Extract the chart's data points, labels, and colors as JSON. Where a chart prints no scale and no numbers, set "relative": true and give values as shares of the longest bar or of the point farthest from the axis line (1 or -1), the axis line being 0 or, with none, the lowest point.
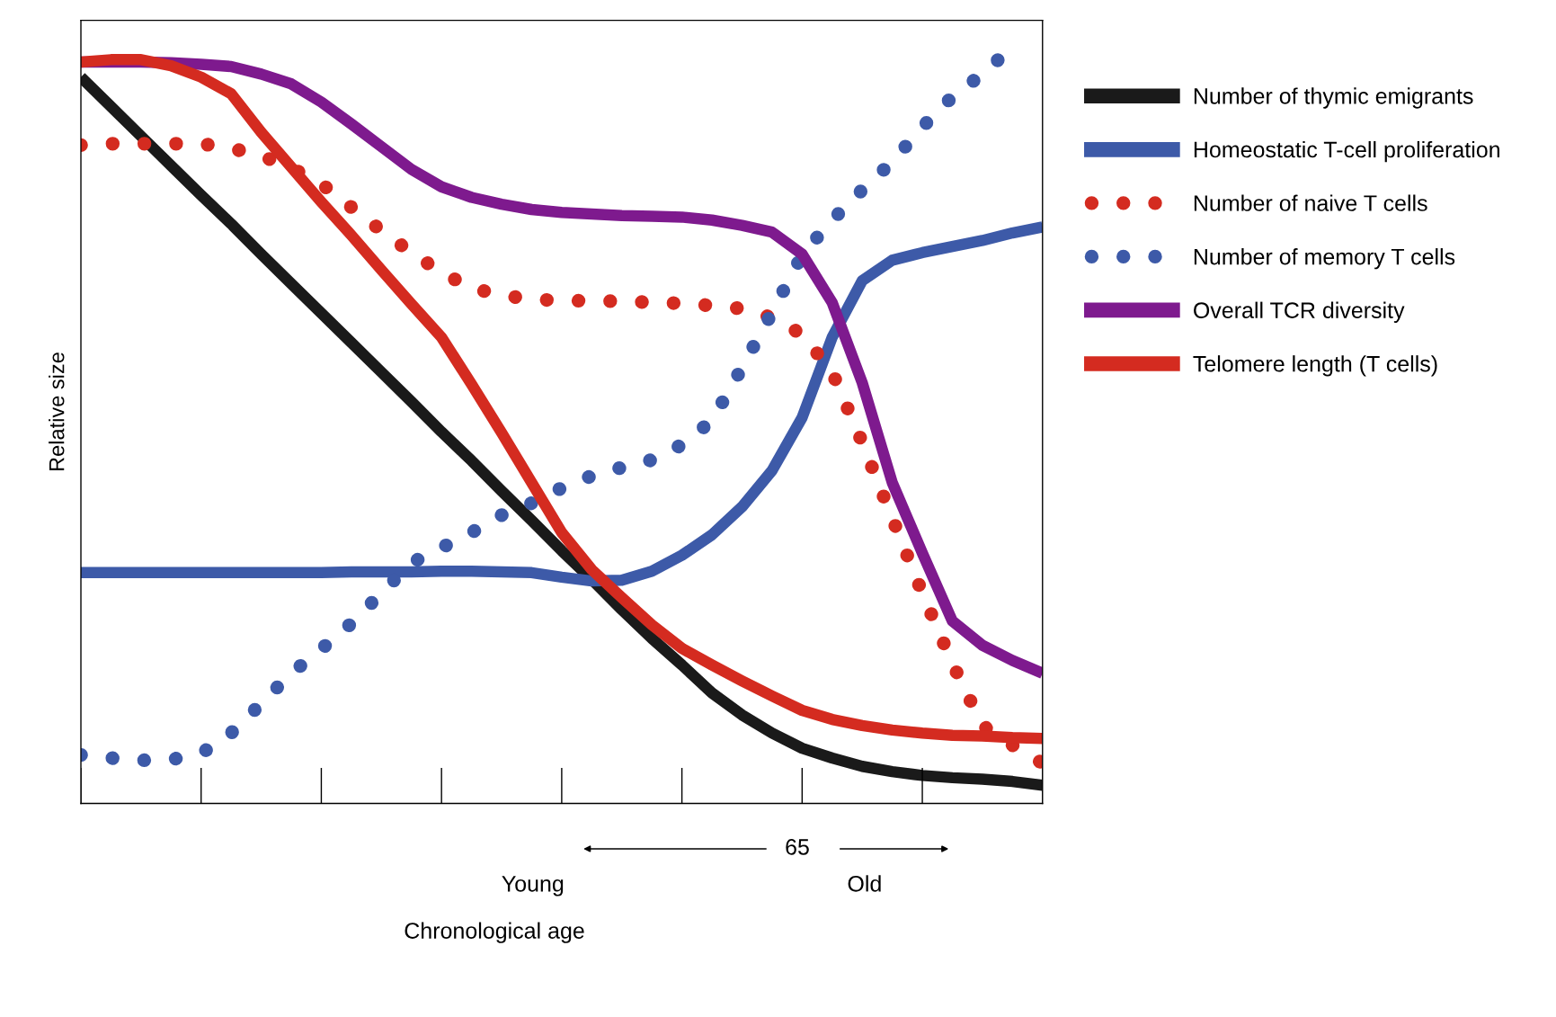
{
  "chart_data": {
    "type": "line",
    "relative": true,
    "ylabel": "Relative size",
    "categories": [
      null,
      null,
      null,
      null,
      null,
      null,
      null,
      null,
      null,
      null,
      null,
      null,
      null,
      null,
      null,
      null,
      null,
      null,
      null,
      null,
      null,
      null,
      null,
      null,
      null,
      null,
      null,
      null,
      null,
      null,
      null,
      null,
      null
    ],
    "annotations": [
      "Young",
      "Old",
      "65",
      "Chronological age"
    ],
    "legend": "right",
    "marker": "none",
    "series": [
      {
        "name": "Number of thymic emigrants",
        "color": "#1a1a1a",
        "line_style": "solid",
        "values": [
          0.96,
          0.921,
          0.882,
          0.843,
          0.804,
          0.766,
          0.726,
          0.687,
          0.648,
          0.609,
          0.57,
          0.531,
          0.491,
          0.453,
          0.413,
          0.374,
          0.334,
          0.296,
          0.256,
          0.218,
          0.183,
          0.146,
          0.117,
          0.093,
          0.073,
          0.06,
          0.049,
          0.042,
          0.037,
          0.034,
          0.032,
          0.029,
          0.024
        ]
      },
      {
        "name": "Homeostatic T-cell proliferation",
        "color": "#3d5aa8",
        "line_style": "solid",
        "values": [
          0.305,
          0.305,
          0.305,
          0.305,
          0.305,
          0.305,
          0.305,
          0.305,
          0.305,
          0.306,
          0.306,
          0.306,
          0.307,
          0.307,
          0.306,
          0.305,
          0.299,
          0.294,
          0.295,
          0.307,
          0.328,
          0.355,
          0.392,
          0.44,
          0.51,
          0.616,
          0.691,
          0.718,
          0.728,
          0.736,
          0.744,
          0.754,
          0.762
        ]
      },
      {
        "name": "Number of naive T cells",
        "color": "#d42b20",
        "line_style": "dotted",
        "values": [
          0.87,
          0.872,
          0.872,
          0.872,
          0.872,
          0.866,
          0.856,
          0.84,
          0.819,
          0.788,
          0.757,
          0.728,
          0.702,
          0.681,
          0.672,
          0.666,
          0.665,
          0.664,
          0.664,
          0.662,
          0.661,
          0.658,
          0.654,
          0.642,
          0.62,
          0.57,
          0.477,
          0.377,
          0.278,
          0.185,
          0.103,
          0.077,
          0.053
        ]
      },
      {
        "name": "Number of memory T cells",
        "color": "#3d5aa8",
        "line_style": "dotted",
        "values": [
          0.064,
          0.06,
          0.057,
          0.058,
          0.066,
          0.093,
          0.132,
          0.172,
          0.204,
          0.238,
          0.278,
          0.318,
          0.338,
          0.358,
          0.381,
          0.397,
          0.417,
          0.433,
          0.444,
          0.454,
          0.474,
          0.506,
          0.576,
          0.649,
          0.725,
          0.771,
          0.811,
          0.848,
          0.894,
          0.934,
          0.964,
          1.0,
          null
        ]
      },
      {
        "name": "Overall TCR diversity",
        "color": "#7e1a8e",
        "line_style": "solid",
        "values": [
          0.98,
          0.98,
          0.98,
          0.979,
          0.977,
          0.974,
          0.964,
          0.951,
          0.927,
          0.898,
          0.868,
          0.838,
          0.815,
          0.801,
          0.792,
          0.785,
          0.781,
          0.779,
          0.777,
          0.776,
          0.775,
          0.771,
          0.764,
          0.755,
          0.726,
          0.662,
          0.556,
          0.424,
          0.331,
          0.241,
          0.209,
          0.189,
          0.172
        ]
      },
      {
        "name": "Telomere length (T cells)",
        "color": "#d42b20",
        "line_style": "solid",
        "values": [
          0.98,
          0.983,
          0.983,
          0.975,
          0.96,
          0.938,
          0.887,
          0.841,
          0.795,
          0.751,
          0.705,
          0.66,
          0.616,
          0.554,
          0.49,
          0.424,
          0.358,
          0.309,
          0.272,
          0.236,
          0.205,
          0.183,
          0.162,
          0.142,
          0.123,
          0.111,
          0.103,
          0.097,
          0.093,
          0.09,
          0.089,
          0.087,
          0.086
        ]
      }
    ]
  }
}
